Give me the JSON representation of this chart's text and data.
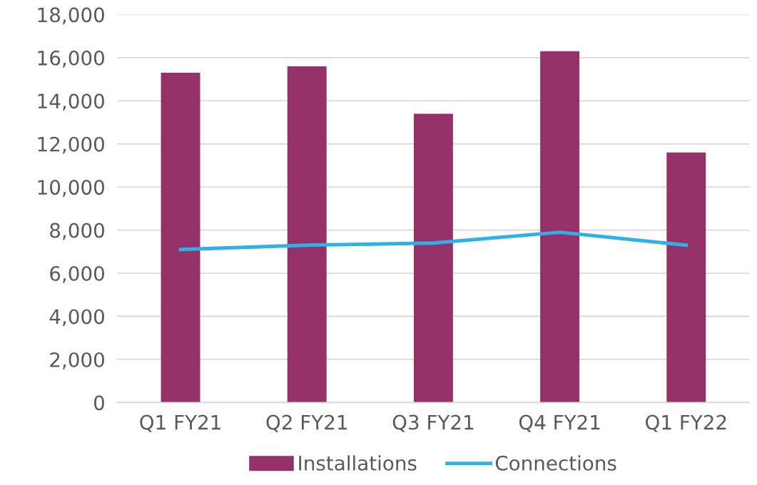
{
  "chart_data": {
    "type": "bar",
    "categories": [
      "Q1 FY21",
      "Q2 FY21",
      "Q3 FY21",
      "Q4 FY21",
      "Q1 FY22"
    ],
    "series": [
      {
        "name": "Installations",
        "color": "#953169",
        "values": [
          15300,
          15600,
          13400,
          16300,
          11600
        ]
      },
      {
        "name": "Connections",
        "type": "line",
        "color": "#2db1e6",
        "values": [
          7100,
          7300,
          7400,
          7900,
          7300
        ]
      }
    ],
    "ylim": [
      0,
      18000
    ],
    "yticks": [
      {
        "value": 0,
        "label": "0"
      },
      {
        "value": 2000,
        "label": "2,000"
      },
      {
        "value": 4000,
        "label": "4,000"
      },
      {
        "value": 6000,
        "label": "6,000"
      },
      {
        "value": 8000,
        "label": "8,000"
      },
      {
        "value": 10000,
        "label": "10,000"
      },
      {
        "value": 12000,
        "label": "12,000"
      },
      {
        "value": 14000,
        "label": "14,000"
      },
      {
        "value": 16000,
        "label": "16,000"
      },
      {
        "value": 18000,
        "label": "18,000"
      }
    ],
    "grid": "y",
    "legend": "bottom",
    "marker": "none",
    "line_style": "solid"
  }
}
